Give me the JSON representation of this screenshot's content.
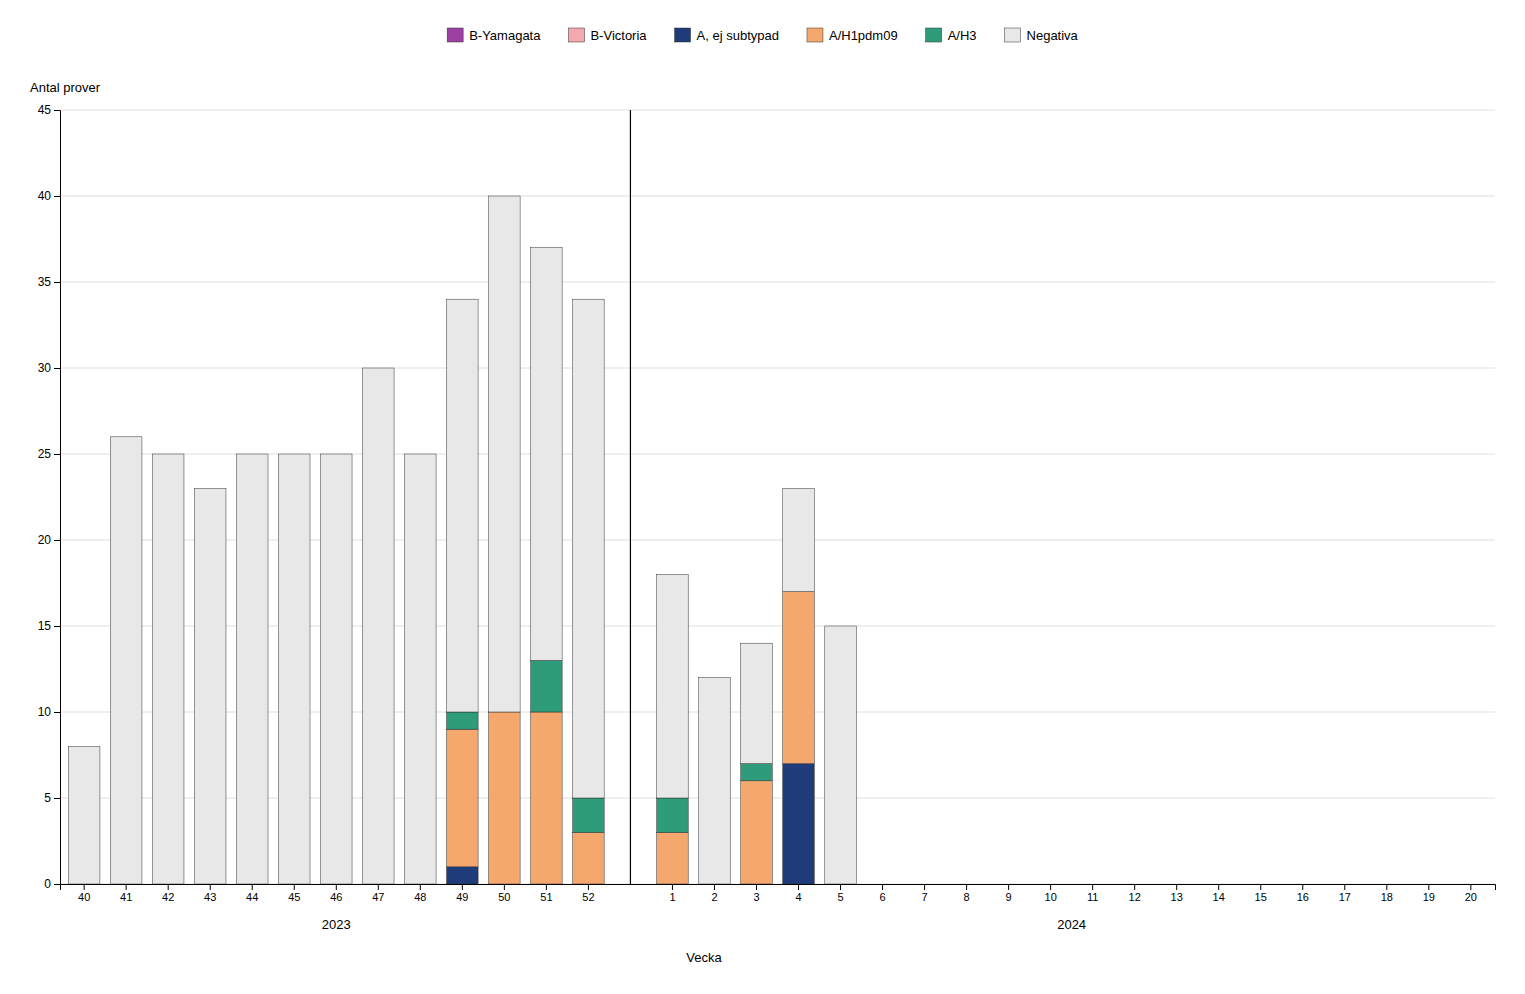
{
  "chart_data": {
    "type": "bar",
    "stacked": true,
    "grid": true,
    "legend": "top",
    "x_label": "Vecka",
    "y_label": "Antal prover",
    "categories": [
      "40",
      "41",
      "42",
      "43",
      "44",
      "45",
      "46",
      "47",
      "48",
      "49",
      "50",
      "51",
      "52",
      "1",
      "2",
      "3",
      "4",
      "5",
      "6",
      "7",
      "8",
      "9",
      "10",
      "11",
      "12",
      "13",
      "14",
      "15",
      "16",
      "17",
      "18",
      "19",
      "20"
    ],
    "annotations": [
      {
        "text": "2023",
        "from": "40",
        "to": "52"
      },
      {
        "text": "2024",
        "from": "1",
        "to": "20"
      }
    ],
    "series": [
      {
        "name": "B-Yamagata",
        "color": "#9e3fa4",
        "values": [
          0,
          0,
          0,
          0,
          0,
          0,
          0,
          0,
          0,
          0,
          0,
          0,
          0,
          0,
          0,
          0,
          0,
          0,
          0,
          0,
          0,
          0,
          0,
          0,
          0,
          0,
          0,
          0,
          0,
          0,
          0,
          0,
          0
        ]
      },
      {
        "name": "B-Victoria",
        "color": "#f4a9b0",
        "values": [
          0,
          0,
          0,
          0,
          0,
          0,
          0,
          0,
          0,
          0,
          0,
          0,
          0,
          0,
          0,
          0,
          0,
          0,
          0,
          0,
          0,
          0,
          0,
          0,
          0,
          0,
          0,
          0,
          0,
          0,
          0,
          0,
          0
        ]
      },
      {
        "name": "A, ej subtypad",
        "color": "#1f3b7a",
        "values": [
          0,
          0,
          0,
          0,
          0,
          0,
          0,
          0,
          0,
          1,
          0,
          0,
          0,
          0,
          0,
          0,
          7,
          0,
          0,
          0,
          0,
          0,
          0,
          0,
          0,
          0,
          0,
          0,
          0,
          0,
          0,
          0,
          0
        ]
      },
      {
        "name": "A/H1pdm09",
        "color": "#f5a86e",
        "values": [
          0,
          0,
          0,
          0,
          0,
          0,
          0,
          0,
          0,
          8,
          10,
          10,
          3,
          3,
          0,
          6,
          10,
          0,
          0,
          0,
          0,
          0,
          0,
          0,
          0,
          0,
          0,
          0,
          0,
          0,
          0,
          0,
          0
        ]
      },
      {
        "name": "A/H3",
        "color": "#2e9b7b",
        "values": [
          0,
          0,
          0,
          0,
          0,
          0,
          0,
          0,
          0,
          1,
          0,
          3,
          2,
          2,
          0,
          1,
          0,
          0,
          0,
          0,
          0,
          0,
          0,
          0,
          0,
          0,
          0,
          0,
          0,
          0,
          0,
          0,
          0
        ]
      },
      {
        "name": "Negativa",
        "color": "#e8e8e8",
        "values": [
          8,
          26,
          25,
          23,
          25,
          25,
          25,
          30,
          25,
          24,
          30,
          24,
          29,
          13,
          12,
          7,
          6,
          15,
          0,
          0,
          0,
          0,
          0,
          0,
          0,
          0,
          0,
          0,
          0,
          0,
          0,
          0,
          0
        ]
      }
    ],
    "ylim": [
      0,
      45
    ],
    "yticks": [
      0,
      5,
      10,
      15,
      20,
      25,
      30,
      35,
      40,
      45
    ]
  }
}
